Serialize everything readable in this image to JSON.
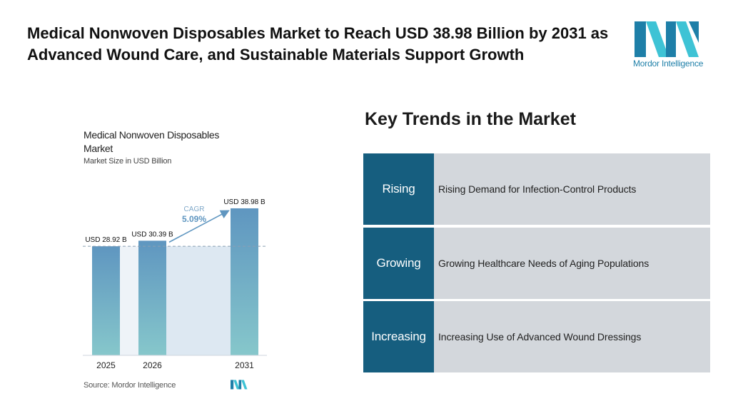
{
  "headline": "Medical Nonwoven Disposables Market to Reach USD 38.98 Billion by 2031 as Advanced Wound Care, and Sustainable Materials Support Growth",
  "logo": {
    "text": "Mordor Intelligence",
    "colors": [
      "#1e7fa8",
      "#3ec3d5"
    ]
  },
  "chart_data": {
    "type": "bar",
    "title": "Medical Nonwoven Disposables Market",
    "subtitle": "Market Size in USD Billion",
    "categories": [
      "2025",
      "2026",
      "2031"
    ],
    "values": [
      28.92,
      30.39,
      38.98
    ],
    "value_labels": [
      "USD 28.92 B",
      "USD 30.39 B",
      "USD 38.98 B"
    ],
    "cagr": {
      "label": "CAGR",
      "value": "5.09%"
    },
    "ylim": [
      0,
      42
    ],
    "reference_line": 28.92,
    "grid": false,
    "bar_color_top": "#5f96c0",
    "bar_color_bottom": "#86c7cb",
    "highlight_band_color": "#dde8f2"
  },
  "source": "Source: Mordor Intelligence",
  "trends": {
    "title": "Key Trends in the Market",
    "items": [
      {
        "label": "Rising",
        "description": "Rising Demand for Infection-Control Products"
      },
      {
        "label": "Growing",
        "description": "Growing Healthcare Needs of Aging Populations"
      },
      {
        "label": "Increasing",
        "description": "Increasing Use of Advanced Wound Dressings"
      }
    ]
  }
}
